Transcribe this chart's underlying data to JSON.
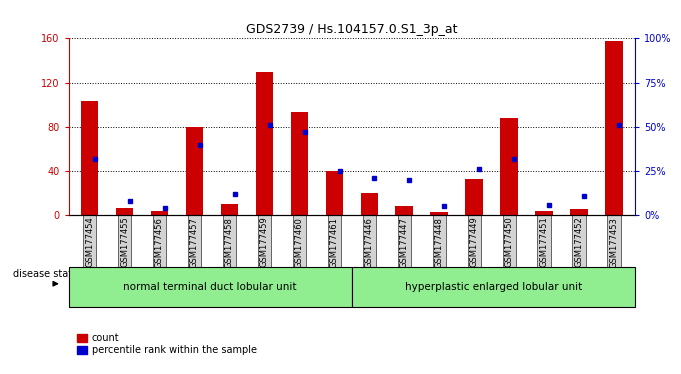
{
  "title": "GDS2739 / Hs.104157.0.S1_3p_at",
  "samples": [
    "GSM177454",
    "GSM177455",
    "GSM177456",
    "GSM177457",
    "GSM177458",
    "GSM177459",
    "GSM177460",
    "GSM177461",
    "GSM177446",
    "GSM177447",
    "GSM177448",
    "GSM177449",
    "GSM177450",
    "GSM177451",
    "GSM177452",
    "GSM177453"
  ],
  "counts": [
    103,
    7,
    4,
    80,
    10,
    130,
    93,
    40,
    20,
    8,
    3,
    33,
    88,
    4,
    6,
    158
  ],
  "percentiles": [
    32,
    8,
    4,
    40,
    12,
    51,
    47,
    25,
    21,
    20,
    5,
    26,
    32,
    6,
    11,
    51
  ],
  "group1_label": "normal terminal duct lobular unit",
  "group1_count": 8,
  "group2_label": "hyperplastic enlarged lobular unit",
  "group2_count": 8,
  "disease_state_label": "disease state",
  "count_color": "#cc0000",
  "percentile_color": "#0000cc",
  "ylim_left": [
    0,
    160
  ],
  "ylim_right": [
    0,
    100
  ],
  "yticks_left": [
    0,
    40,
    80,
    120,
    160
  ],
  "yticks_right": [
    0,
    25,
    50,
    75,
    100
  ],
  "ytick_labels_left": [
    "0",
    "40",
    "80",
    "120",
    "160"
  ],
  "ytick_labels_right": [
    "0%",
    "25%",
    "50%",
    "75%",
    "100%"
  ],
  "group1_color": "#90ee90",
  "group2_color": "#90ee90",
  "tick_bg_color": "#d3d3d3",
  "legend_count_label": "count",
  "legend_percentile_label": "percentile rank within the sample"
}
